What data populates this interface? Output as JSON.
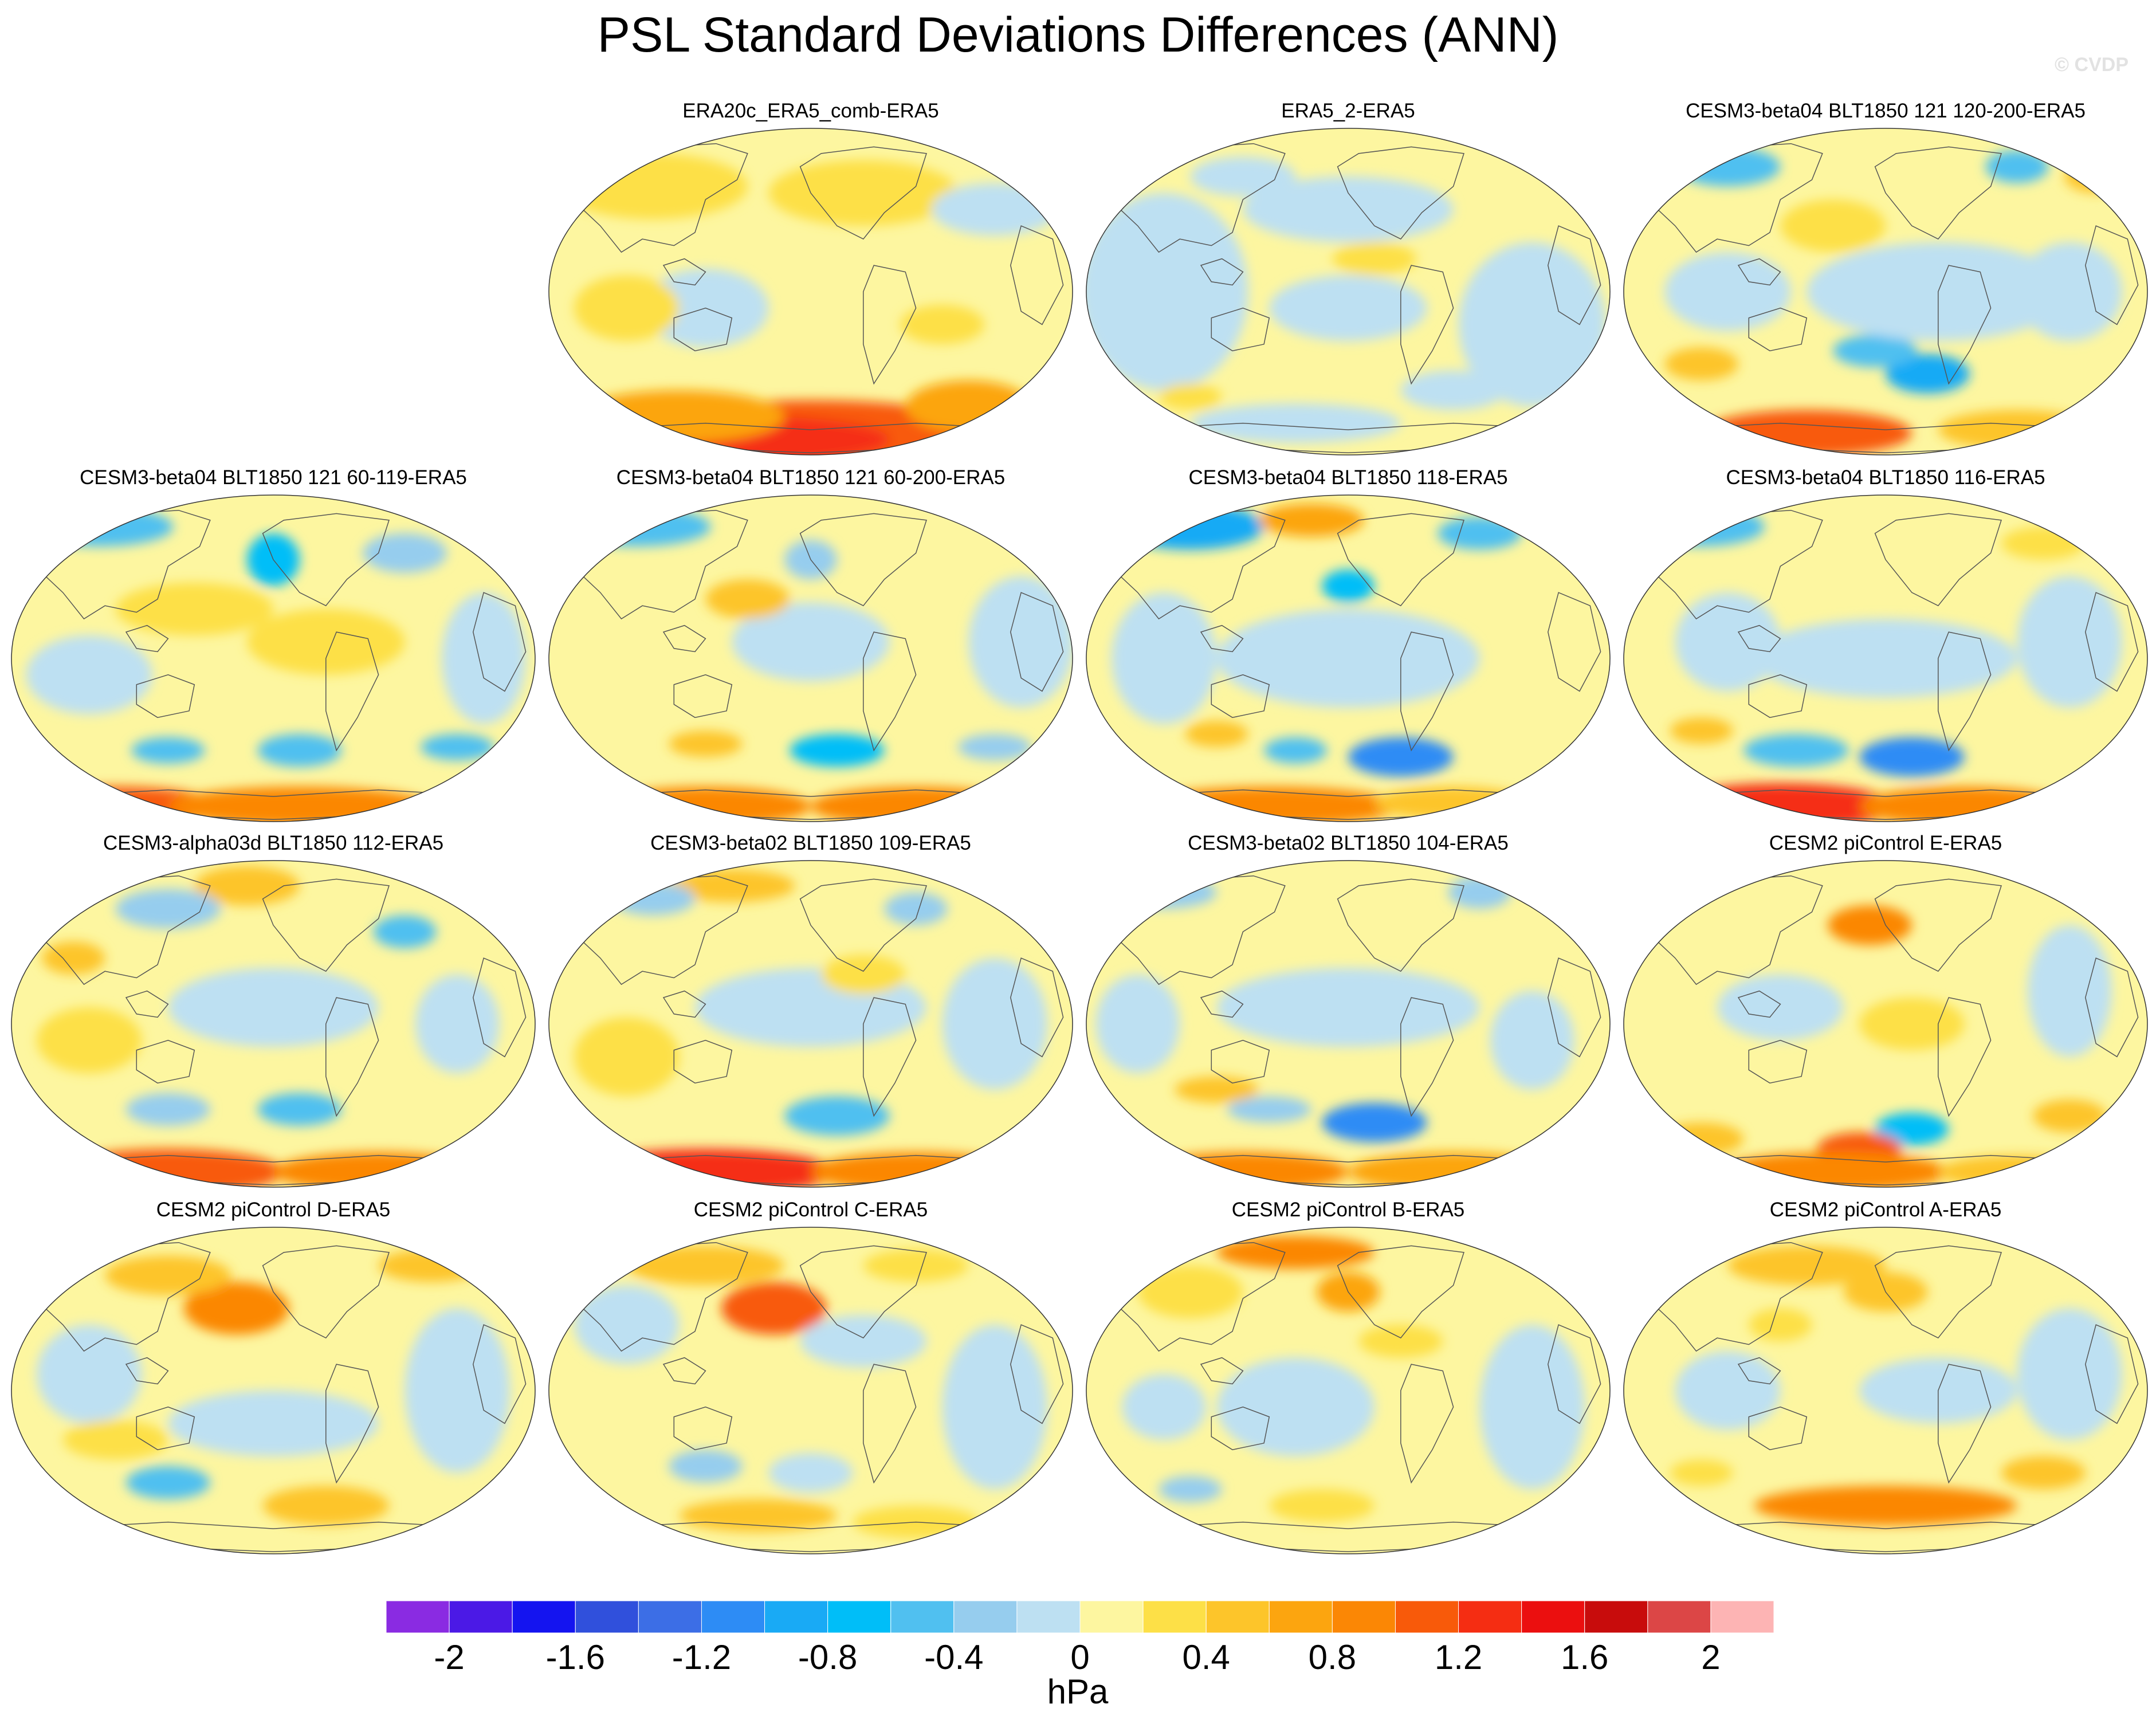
{
  "title": "PSL Standard Deviations Differences (ANN)",
  "watermark": "© CVDP",
  "colors": {
    "ocean_default": "#fdf6a0",
    "continent_line": "#555555"
  },
  "chart_data": {
    "type": "heatmap",
    "variable": "PSL",
    "season": "ANN",
    "units": "hPa",
    "colorbar": {
      "tick_labels": [
        "-2",
        "-1.6",
        "-1.2",
        "-0.8",
        "-0.4",
        "0",
        "0.4",
        "0.8",
        "1.2",
        "1.6",
        "2"
      ],
      "ticks": [
        -2,
        -1.6,
        -1.2,
        -0.8,
        -0.4,
        0,
        0.4,
        0.8,
        1.2,
        1.6,
        2
      ],
      "levels": [
        -2.2,
        -2,
        -1.8,
        -1.6,
        -1.4,
        -1.2,
        -1,
        -0.8,
        -0.6,
        -0.4,
        -0.2,
        0,
        0.2,
        0.4,
        0.6,
        0.8,
        1,
        1.2,
        1.4,
        1.6,
        1.8,
        2,
        2.2
      ],
      "colors": [
        "#8a2be2",
        "#4b19e6",
        "#1414f0",
        "#3050dc",
        "#3c6ee6",
        "#2d8cf5",
        "#19aaf5",
        "#00bef8",
        "#50c0f0",
        "#96cdee",
        "#bde0f2",
        "#fdf6a0",
        "#fde047",
        "#fdc52a",
        "#fca50f",
        "#fb8705",
        "#f85a0a",
        "#f52d12",
        "#eb0f0f",
        "#c80c0c",
        "#dc4646",
        "#fdb4b4"
      ]
    },
    "panels": [
      {
        "title": "ERA20c_ERA5_comb-ERA5",
        "features": [
          [
            0.5,
            0.93,
            0.35,
            0.1,
            1.0
          ],
          [
            0.4,
            0.95,
            0.25,
            0.07,
            1.3
          ],
          [
            0.25,
            0.88,
            0.2,
            0.08,
            0.6
          ],
          [
            0.8,
            0.85,
            0.12,
            0.08,
            0.6
          ],
          [
            0.2,
            0.18,
            0.18,
            0.1,
            0.3
          ],
          [
            0.6,
            0.2,
            0.18,
            0.1,
            0.3
          ],
          [
            0.3,
            0.55,
            0.12,
            0.12,
            -0.1
          ],
          [
            0.85,
            0.25,
            0.12,
            0.08,
            -0.1
          ],
          [
            0.15,
            0.55,
            0.1,
            0.1,
            0.3
          ],
          [
            0.75,
            0.6,
            0.08,
            0.06,
            0.3
          ]
        ]
      },
      {
        "title": "ERA5_2-ERA5",
        "features": [
          [
            0.15,
            0.5,
            0.16,
            0.3,
            -0.1
          ],
          [
            0.5,
            0.55,
            0.15,
            0.1,
            -0.1
          ],
          [
            0.85,
            0.6,
            0.14,
            0.25,
            -0.1
          ],
          [
            0.5,
            0.25,
            0.2,
            0.1,
            -0.1
          ],
          [
            0.4,
            0.9,
            0.2,
            0.06,
            -0.1
          ],
          [
            0.7,
            0.8,
            0.1,
            0.06,
            -0.1
          ],
          [
            0.3,
            0.15,
            0.1,
            0.06,
            -0.1
          ],
          [
            0.55,
            0.4,
            0.08,
            0.05,
            0.3
          ],
          [
            0.2,
            0.82,
            0.06,
            0.04,
            0.3
          ]
        ]
      },
      {
        "title": "CESM3-beta04 BLT1850 121 120-200-ERA5",
        "features": [
          [
            0.2,
            0.12,
            0.1,
            0.06,
            -0.5
          ],
          [
            0.75,
            0.12,
            0.06,
            0.05,
            -0.5
          ],
          [
            0.58,
            0.75,
            0.08,
            0.06,
            -0.9
          ],
          [
            0.48,
            0.68,
            0.08,
            0.05,
            -0.5
          ],
          [
            0.15,
            0.72,
            0.07,
            0.05,
            0.5
          ],
          [
            0.35,
            0.93,
            0.2,
            0.07,
            1.0
          ],
          [
            0.75,
            0.92,
            0.15,
            0.06,
            0.5
          ],
          [
            0.4,
            0.3,
            0.1,
            0.08,
            0.3
          ],
          [
            0.6,
            0.5,
            0.25,
            0.15,
            -0.1
          ],
          [
            0.2,
            0.5,
            0.12,
            0.12,
            -0.1
          ],
          [
            0.85,
            0.5,
            0.1,
            0.15,
            -0.1
          ],
          [
            0.9,
            0.15,
            0.06,
            0.05,
            0.5
          ]
        ]
      },
      {
        "title": "CESM3-beta04 BLT1850 121 60-119-ERA5",
        "features": [
          [
            0.17,
            0.1,
            0.14,
            0.06,
            -0.5
          ],
          [
            0.5,
            0.2,
            0.05,
            0.08,
            -0.7
          ],
          [
            0.3,
            0.78,
            0.07,
            0.04,
            -0.5
          ],
          [
            0.55,
            0.78,
            0.08,
            0.05,
            -0.5
          ],
          [
            0.85,
            0.77,
            0.07,
            0.04,
            -0.5
          ],
          [
            0.2,
            0.95,
            0.2,
            0.06,
            1.0
          ],
          [
            0.55,
            0.95,
            0.25,
            0.06,
            0.8
          ],
          [
            0.15,
            0.55,
            0.12,
            0.12,
            -0.1
          ],
          [
            0.9,
            0.5,
            0.08,
            0.2,
            -0.1
          ],
          [
            0.35,
            0.35,
            0.15,
            0.08,
            0.3
          ],
          [
            0.6,
            0.45,
            0.15,
            0.1,
            0.3
          ],
          [
            0.75,
            0.18,
            0.08,
            0.06,
            -0.3
          ]
        ]
      },
      {
        "title": "CESM3-beta04 BLT1850 121 60-200-ERA5",
        "features": [
          [
            0.17,
            0.1,
            0.14,
            0.06,
            -0.5
          ],
          [
            0.3,
            0.76,
            0.07,
            0.04,
            0.5
          ],
          [
            0.55,
            0.78,
            0.09,
            0.05,
            -0.7
          ],
          [
            0.85,
            0.77,
            0.07,
            0.04,
            -0.3
          ],
          [
            0.3,
            0.95,
            0.2,
            0.06,
            0.8
          ],
          [
            0.7,
            0.95,
            0.2,
            0.06,
            0.8
          ],
          [
            0.9,
            0.45,
            0.1,
            0.2,
            -0.1
          ],
          [
            0.5,
            0.45,
            0.15,
            0.12,
            -0.1
          ],
          [
            0.38,
            0.32,
            0.08,
            0.06,
            0.5
          ],
          [
            0.5,
            0.2,
            0.05,
            0.06,
            -0.3
          ]
        ]
      },
      {
        "title": "CESM3-beta04 BLT1850 118-ERA5",
        "features": [
          [
            0.2,
            0.1,
            0.14,
            0.07,
            -0.9
          ],
          [
            0.43,
            0.08,
            0.1,
            0.05,
            0.7
          ],
          [
            0.5,
            0.28,
            0.05,
            0.05,
            -0.7
          ],
          [
            0.6,
            0.8,
            0.1,
            0.06,
            -1.1
          ],
          [
            0.4,
            0.78,
            0.06,
            0.04,
            -0.5
          ],
          [
            0.25,
            0.73,
            0.06,
            0.04,
            0.5
          ],
          [
            0.35,
            0.95,
            0.25,
            0.06,
            0.8
          ],
          [
            0.7,
            0.94,
            0.15,
            0.05,
            0.5
          ],
          [
            0.5,
            0.5,
            0.25,
            0.15,
            -0.1
          ],
          [
            0.15,
            0.5,
            0.1,
            0.2,
            -0.1
          ],
          [
            0.75,
            0.12,
            0.08,
            0.05,
            -0.5
          ]
        ]
      },
      {
        "title": "CESM3-beta04 BLT1850 116-ERA5",
        "features": [
          [
            0.15,
            0.1,
            0.12,
            0.06,
            -0.5
          ],
          [
            0.55,
            0.8,
            0.1,
            0.06,
            -1.1
          ],
          [
            0.33,
            0.78,
            0.1,
            0.05,
            -0.5
          ],
          [
            0.15,
            0.72,
            0.06,
            0.04,
            0.5
          ],
          [
            0.3,
            0.95,
            0.22,
            0.07,
            1.2
          ],
          [
            0.65,
            0.95,
            0.2,
            0.06,
            0.8
          ],
          [
            0.5,
            0.5,
            0.25,
            0.12,
            -0.1
          ],
          [
            0.85,
            0.45,
            0.1,
            0.2,
            -0.1
          ],
          [
            0.2,
            0.45,
            0.1,
            0.15,
            -0.1
          ],
          [
            0.8,
            0.15,
            0.08,
            0.05,
            0.3
          ]
        ]
      },
      {
        "title": "CESM3-alpha03d BLT1850 112-ERA5",
        "features": [
          [
            0.45,
            0.08,
            0.1,
            0.06,
            0.5
          ],
          [
            0.12,
            0.3,
            0.06,
            0.05,
            0.5
          ],
          [
            0.3,
            0.15,
            0.1,
            0.06,
            -0.3
          ],
          [
            0.75,
            0.22,
            0.06,
            0.05,
            -0.5
          ],
          [
            0.3,
            0.76,
            0.08,
            0.05,
            -0.3
          ],
          [
            0.55,
            0.76,
            0.08,
            0.05,
            -0.5
          ],
          [
            0.3,
            0.95,
            0.22,
            0.07,
            1.0
          ],
          [
            0.7,
            0.95,
            0.2,
            0.06,
            0.8
          ],
          [
            0.5,
            0.45,
            0.2,
            0.12,
            -0.1
          ],
          [
            0.85,
            0.5,
            0.08,
            0.15,
            -0.1
          ],
          [
            0.15,
            0.55,
            0.1,
            0.1,
            0.3
          ]
        ]
      },
      {
        "title": "CESM3-beta02 BLT1850 109-ERA5",
        "features": [
          [
            0.35,
            0.08,
            0.12,
            0.05,
            0.5
          ],
          [
            0.2,
            0.12,
            0.08,
            0.05,
            -0.3
          ],
          [
            0.7,
            0.15,
            0.06,
            0.05,
            -0.3
          ],
          [
            0.55,
            0.78,
            0.1,
            0.06,
            -0.5
          ],
          [
            0.3,
            0.95,
            0.25,
            0.07,
            1.2
          ],
          [
            0.7,
            0.95,
            0.2,
            0.06,
            0.8
          ],
          [
            0.5,
            0.45,
            0.22,
            0.12,
            -0.1
          ],
          [
            0.85,
            0.5,
            0.1,
            0.2,
            -0.1
          ],
          [
            0.15,
            0.6,
            0.1,
            0.12,
            0.3
          ],
          [
            0.6,
            0.35,
            0.08,
            0.06,
            0.3
          ]
        ]
      },
      {
        "title": "CESM3-beta02 BLT1850 104-ERA5",
        "features": [
          [
            0.15,
            0.1,
            0.1,
            0.05,
            -0.3
          ],
          [
            0.55,
            0.8,
            0.1,
            0.06,
            -1.1
          ],
          [
            0.35,
            0.76,
            0.08,
            0.04,
            -0.3
          ],
          [
            0.25,
            0.7,
            0.08,
            0.04,
            0.5
          ],
          [
            0.3,
            0.95,
            0.2,
            0.06,
            0.8
          ],
          [
            0.7,
            0.95,
            0.2,
            0.06,
            0.6
          ],
          [
            0.5,
            0.45,
            0.25,
            0.12,
            -0.1
          ],
          [
            0.85,
            0.55,
            0.08,
            0.15,
            -0.1
          ],
          [
            0.1,
            0.5,
            0.08,
            0.15,
            -0.1
          ],
          [
            0.75,
            0.1,
            0.06,
            0.05,
            -0.3
          ]
        ]
      },
      {
        "title": "CESM2 piControl E-ERA5",
        "features": [
          [
            0.47,
            0.2,
            0.08,
            0.06,
            0.9
          ],
          [
            0.55,
            0.82,
            0.07,
            0.05,
            -0.7
          ],
          [
            0.85,
            0.78,
            0.07,
            0.05,
            0.5
          ],
          [
            0.45,
            0.88,
            0.08,
            0.05,
            1.0
          ],
          [
            0.4,
            0.95,
            0.22,
            0.06,
            0.8
          ],
          [
            0.75,
            0.95,
            0.15,
            0.05,
            0.5
          ],
          [
            0.15,
            0.85,
            0.08,
            0.05,
            0.5
          ],
          [
            0.85,
            0.4,
            0.08,
            0.2,
            -0.1
          ],
          [
            0.3,
            0.45,
            0.12,
            0.1,
            -0.1
          ],
          [
            0.55,
            0.5,
            0.1,
            0.08,
            0.3
          ]
        ]
      },
      {
        "title": "CESM2 piControl D-ERA5",
        "features": [
          [
            0.43,
            0.25,
            0.1,
            0.08,
            0.8
          ],
          [
            0.3,
            0.15,
            0.12,
            0.06,
            0.5
          ],
          [
            0.8,
            0.12,
            0.1,
            0.05,
            0.5
          ],
          [
            0.3,
            0.78,
            0.08,
            0.05,
            -0.5
          ],
          [
            0.85,
            0.5,
            0.1,
            0.25,
            -0.1
          ],
          [
            0.5,
            0.6,
            0.2,
            0.1,
            -0.1
          ],
          [
            0.15,
            0.45,
            0.1,
            0.15,
            -0.1
          ],
          [
            0.6,
            0.85,
            0.12,
            0.06,
            0.5
          ],
          [
            0.2,
            0.65,
            0.1,
            0.06,
            0.3
          ]
        ]
      },
      {
        "title": "CESM2 piControl C-ERA5",
        "features": [
          [
            0.43,
            0.25,
            0.1,
            0.08,
            1.0
          ],
          [
            0.3,
            0.12,
            0.15,
            0.06,
            0.5
          ],
          [
            0.7,
            0.12,
            0.1,
            0.05,
            0.3
          ],
          [
            0.3,
            0.73,
            0.07,
            0.05,
            -0.3
          ],
          [
            0.5,
            0.75,
            0.08,
            0.06,
            -0.1
          ],
          [
            0.85,
            0.55,
            0.1,
            0.25,
            -0.1
          ],
          [
            0.15,
            0.3,
            0.1,
            0.12,
            -0.1
          ],
          [
            0.6,
            0.35,
            0.12,
            0.08,
            -0.1
          ],
          [
            0.4,
            0.88,
            0.15,
            0.05,
            0.5
          ],
          [
            0.7,
            0.9,
            0.12,
            0.05,
            0.3
          ]
        ]
      },
      {
        "title": "CESM2 piControl B-ERA5",
        "features": [
          [
            0.4,
            0.08,
            0.15,
            0.05,
            0.9
          ],
          [
            0.5,
            0.2,
            0.06,
            0.06,
            0.7
          ],
          [
            0.2,
            0.2,
            0.1,
            0.08,
            0.3
          ],
          [
            0.85,
            0.55,
            0.1,
            0.25,
            -0.1
          ],
          [
            0.4,
            0.55,
            0.15,
            0.15,
            -0.1
          ],
          [
            0.15,
            0.55,
            0.08,
            0.1,
            -0.1
          ],
          [
            0.6,
            0.35,
            0.08,
            0.05,
            0.3
          ],
          [
            0.45,
            0.85,
            0.1,
            0.05,
            0.3
          ],
          [
            0.2,
            0.8,
            0.06,
            0.04,
            -0.3
          ]
        ]
      },
      {
        "title": "CESM2 piControl A-ERA5",
        "features": [
          [
            0.35,
            0.12,
            0.15,
            0.06,
            0.5
          ],
          [
            0.5,
            0.2,
            0.08,
            0.06,
            0.5
          ],
          [
            0.5,
            0.85,
            0.25,
            0.06,
            0.8
          ],
          [
            0.8,
            0.75,
            0.08,
            0.05,
            0.5
          ],
          [
            0.15,
            0.75,
            0.06,
            0.04,
            0.3
          ],
          [
            0.85,
            0.45,
            0.1,
            0.2,
            -0.1
          ],
          [
            0.6,
            0.5,
            0.15,
            0.1,
            -0.1
          ],
          [
            0.2,
            0.5,
            0.1,
            0.12,
            -0.1
          ],
          [
            0.3,
            0.3,
            0.06,
            0.05,
            0.3
          ]
        ]
      }
    ]
  }
}
